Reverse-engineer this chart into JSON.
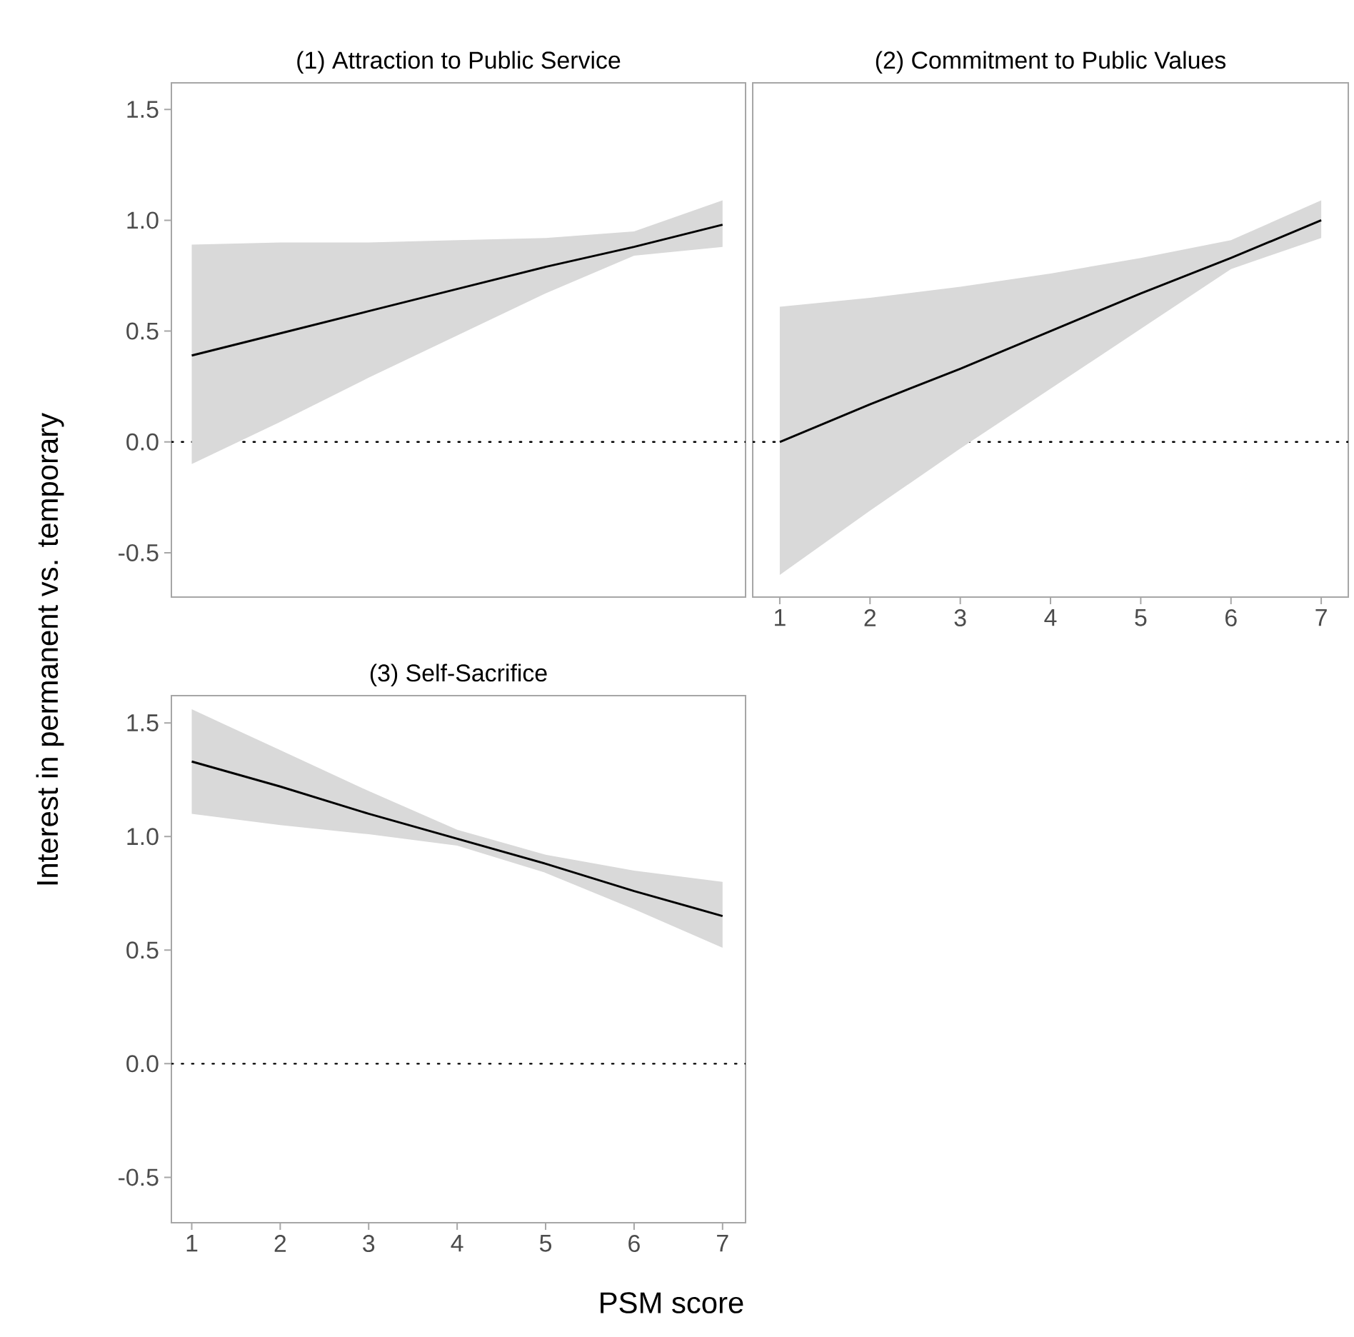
{
  "chart_data": [
    {
      "type": "line",
      "title": "(1) Attraction to Public Service",
      "ylabel": "Interest in permanent vs. temporary",
      "x": [
        1,
        2,
        3,
        4,
        5,
        6,
        7
      ],
      "xlim": [
        0.77,
        7.26
      ],
      "ylim": [
        -0.7,
        1.62
      ],
      "yticks": [
        {
          "value": -0.5,
          "label": "-0.5"
        },
        {
          "value": 0,
          "label": "0.0"
        },
        {
          "value": 0.5,
          "label": "0.5"
        },
        {
          "value": 1,
          "label": "1.0"
        },
        {
          "value": 1.5,
          "label": "1.5"
        }
      ],
      "tick_labels": "y",
      "series": [
        {
          "color": "#000000",
          "values": [
            0.39,
            0.49,
            0.59,
            0.69,
            0.79,
            0.88,
            0.98
          ],
          "lower": [
            -0.1,
            0.09,
            0.29,
            0.48,
            0.67,
            0.84,
            0.88
          ],
          "upper": [
            0.89,
            0.9,
            0.9,
            0.91,
            0.92,
            0.95,
            1.09
          ]
        }
      ],
      "ref_lines": [
        {
          "axis": "y",
          "value": 0,
          "line_style": "dotted",
          "color": "#000000"
        }
      ]
    },
    {
      "type": "line",
      "title": "(2) Commitment to Public Values",
      "x": [
        1,
        2,
        3,
        4,
        5,
        6,
        7
      ],
      "xlim": [
        0.7,
        7.3
      ],
      "ylim": [
        -0.7,
        1.62
      ],
      "xticks": [
        1,
        2,
        3,
        4,
        5,
        6,
        7
      ],
      "tick_labels": "x",
      "series": [
        {
          "color": "#000000",
          "values": [
            0.0,
            0.17,
            0.33,
            0.5,
            0.67,
            0.83,
            1.0
          ],
          "lower": [
            -0.6,
            -0.31,
            -0.03,
            0.24,
            0.51,
            0.78,
            0.92
          ],
          "upper": [
            0.61,
            0.65,
            0.7,
            0.76,
            0.83,
            0.91,
            1.09
          ]
        }
      ],
      "ref_lines": [
        {
          "axis": "y",
          "value": 0,
          "line_style": "dotted",
          "color": "#000000"
        }
      ]
    },
    {
      "type": "line",
      "title": "(3) Self-Sacrifice",
      "xlabel": "PSM score",
      "x": [
        1,
        2,
        3,
        4,
        5,
        6,
        7
      ],
      "xlim": [
        0.77,
        7.26
      ],
      "ylim": [
        -0.7,
        1.62
      ],
      "xticks": [
        1,
        2,
        3,
        4,
        5,
        6,
        7
      ],
      "yticks": [
        {
          "value": -0.5,
          "label": "-0.5"
        },
        {
          "value": 0,
          "label": "0.0"
        },
        {
          "value": 0.5,
          "label": "0.5"
        },
        {
          "value": 1,
          "label": "1.0"
        },
        {
          "value": 1.5,
          "label": "1.5"
        }
      ],
      "series": [
        {
          "color": "#000000",
          "values": [
            1.33,
            1.22,
            1.1,
            0.99,
            0.88,
            0.76,
            0.65
          ],
          "lower": [
            1.1,
            1.05,
            1.01,
            0.96,
            0.84,
            0.68,
            0.51
          ],
          "upper": [
            1.56,
            1.38,
            1.2,
            1.03,
            0.92,
            0.85,
            0.8
          ]
        }
      ],
      "ref_lines": [
        {
          "axis": "y",
          "value": 0,
          "line_style": "dotted",
          "color": "#000000"
        }
      ]
    }
  ]
}
